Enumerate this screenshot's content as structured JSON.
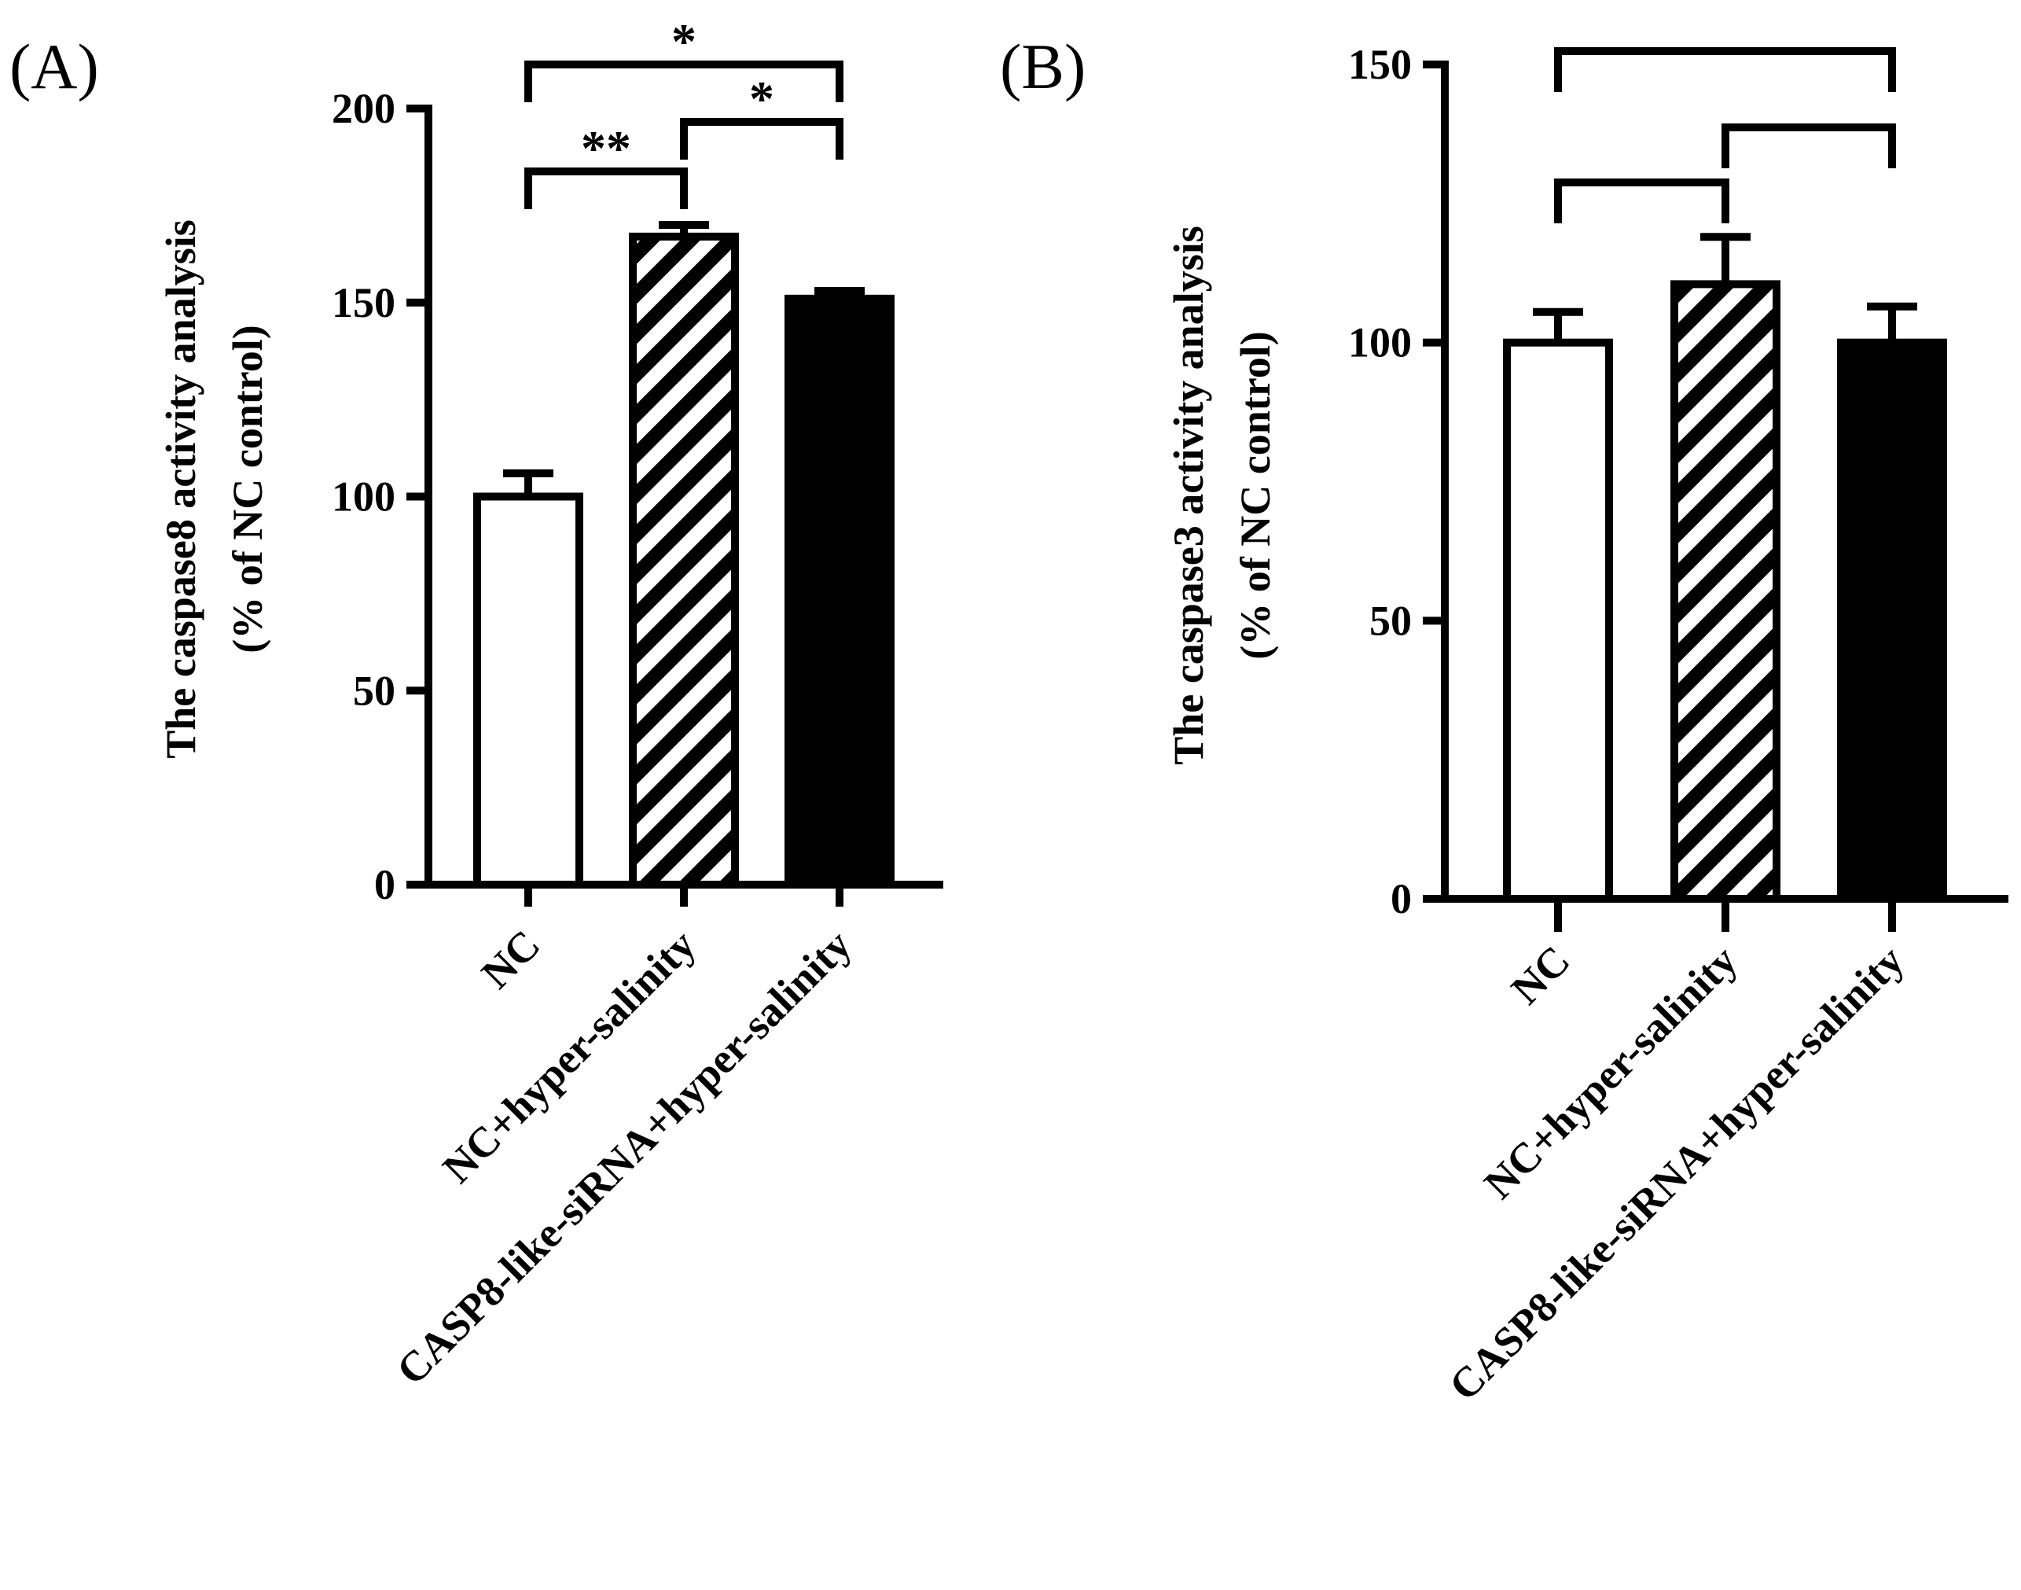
{
  "chart_data": [
    {
      "panel": "(A)",
      "type": "bar",
      "categories": [
        "NC",
        "NC+hyper-salinity",
        "CASP8-like-siRNA+hyper-salinity"
      ],
      "values": [
        100,
        167,
        151
      ],
      "errors": [
        6,
        3,
        2
      ],
      "patterns": [
        "open",
        "hatched",
        "solid"
      ],
      "ylabel_line1": "The caspase8 activity analysis",
      "ylabel_line2": "(% of NC control)",
      "yticks": [
        0,
        50,
        100,
        150,
        200
      ],
      "ylim": [
        0,
        200
      ],
      "significance": [
        {
          "from": 0,
          "to": 1,
          "label": "**"
        },
        {
          "from": 1,
          "to": 2,
          "label": "*"
        },
        {
          "from": 0,
          "to": 2,
          "label": "*"
        }
      ]
    },
    {
      "panel": "(B)",
      "type": "bar",
      "categories": [
        "NC",
        "NC+hyper-salinity",
        "CASP8-like-siRNA+hyper-salinity"
      ],
      "values": [
        100,
        110.5,
        100
      ],
      "errors": [
        5.5,
        8.5,
        6.5
      ],
      "patterns": [
        "open",
        "hatched",
        "solid"
      ],
      "ylabel_line1": "The caspase3 activity analysis",
      "ylabel_line2": "(% of NC control)",
      "yticks": [
        0,
        50,
        100,
        150
      ],
      "ylim": [
        0,
        150
      ],
      "significance": [
        {
          "from": 0,
          "to": 1,
          "label": ""
        },
        {
          "from": 1,
          "to": 2,
          "label": ""
        },
        {
          "from": 0,
          "to": 2,
          "label": ""
        }
      ]
    }
  ]
}
